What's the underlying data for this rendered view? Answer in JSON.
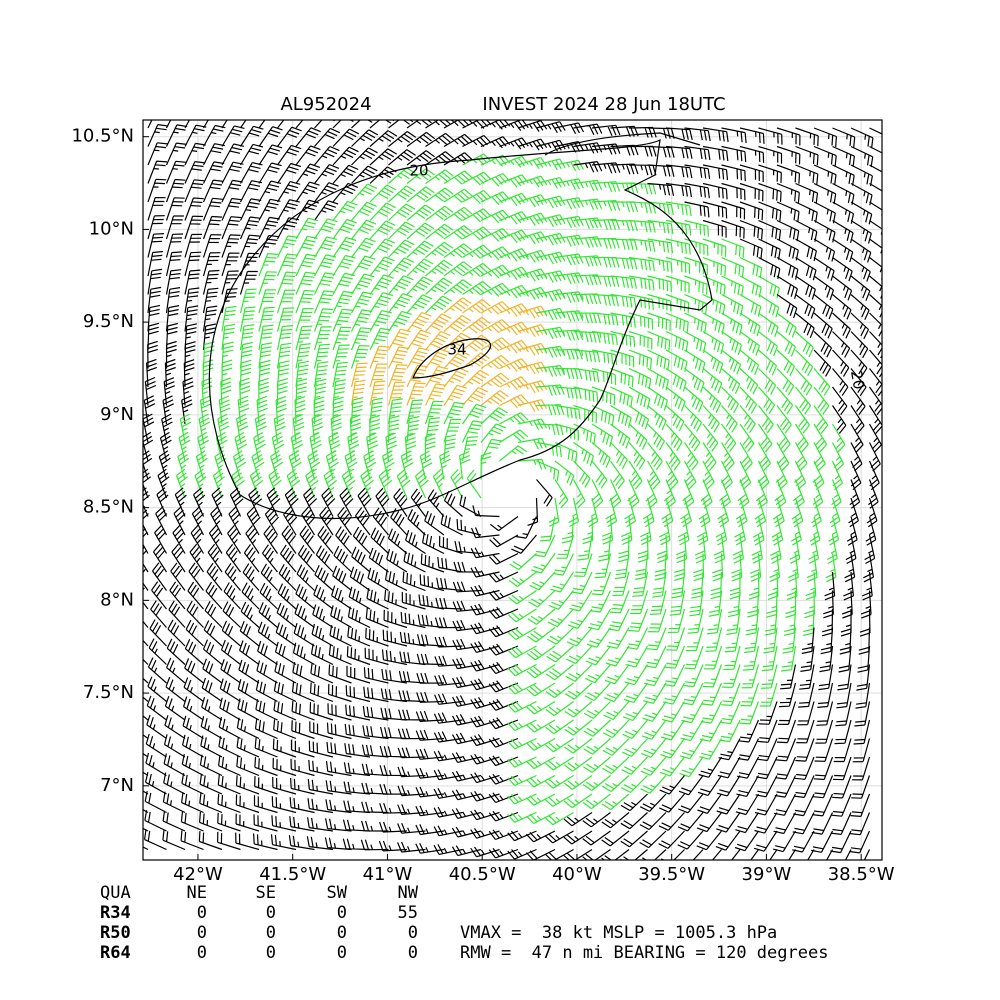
{
  "map": {
    "title_left": "AL952024",
    "title_right": "INVEST 2024 28 Jun 18UTC",
    "xlim": [
      -42.29,
      -38.39
    ],
    "ylim": [
      6.6,
      10.59
    ],
    "xticks": [
      {
        "value": -42,
        "label": "42°W"
      },
      {
        "value": -41.5,
        "label": "41.5°W"
      },
      {
        "value": -41,
        "label": "41°W"
      },
      {
        "value": -40.5,
        "label": "40.5°W"
      },
      {
        "value": -40,
        "label": "40°W"
      },
      {
        "value": -39.5,
        "label": "39.5°W"
      },
      {
        "value": -39,
        "label": "39°W"
      },
      {
        "value": -38.5,
        "label": "38.5°W"
      }
    ],
    "yticks": [
      {
        "value": 7,
        "label": "7°N"
      },
      {
        "value": 7.5,
        "label": "7.5°N"
      },
      {
        "value": 8,
        "label": "8°N"
      },
      {
        "value": 8.5,
        "label": "8.5°N"
      },
      {
        "value": 9,
        "label": "9°N"
      },
      {
        "value": 9.5,
        "label": "9.5°N"
      },
      {
        "value": 10,
        "label": "10°N"
      },
      {
        "value": 10.5,
        "label": "10.5°N"
      }
    ],
    "contour_labels": [
      "20",
      "34",
      "20"
    ]
  },
  "table": {
    "header": [
      "QUA",
      "NE",
      "SE",
      "SW",
      "NW"
    ],
    "rows": [
      [
        "R34",
        0,
        0,
        0,
        55
      ],
      [
        "R50",
        0,
        0,
        0,
        0
      ],
      [
        "R64",
        0,
        0,
        0,
        0
      ]
    ]
  },
  "info": [
    "VMAX =  38 kt MSLP = 1005.3 hPa",
    "RMW =  47 n mi BEARING = 120 degrees"
  ]
}
